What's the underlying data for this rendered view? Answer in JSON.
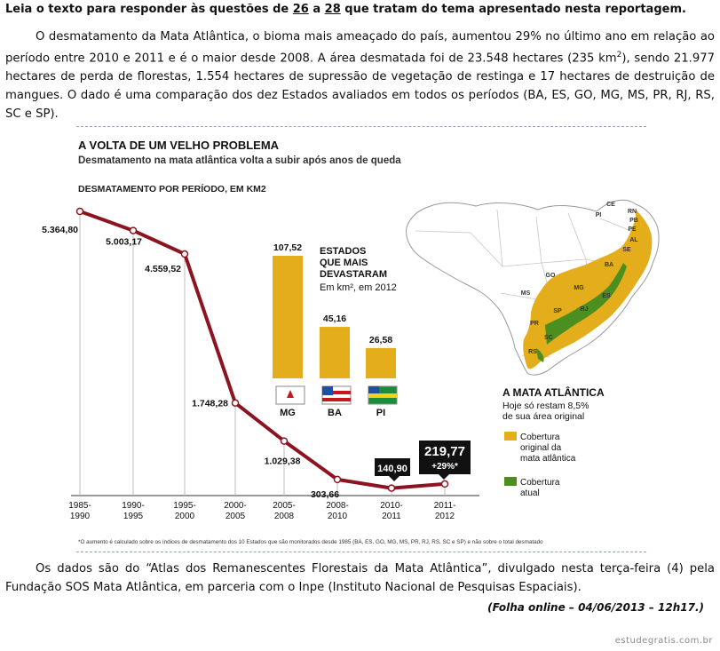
{
  "header": {
    "pre": "Leia o texto para responder às questões de ",
    "q_from": "26",
    "mid": " a ",
    "q_to": "28",
    "post": " que tratam do tema apresentado nesta reportagem."
  },
  "paragraph1": {
    "text_a": "O desmatamento da Mata Atlântica, o bioma mais ameaçado do país, aumentou 29% no último ano em relação ao período entre 2010 e 2011 e é o maior desde 2008. A área desmatada foi de 23.548 hectares (235 km",
    "sup": "2",
    "text_b": "), sendo 21.977 hectares de perda de florestas, 1.554 hectares de supressão de vegetação de restinga e 17 hectares de destruição de mangues. O dado é uma comparação dos dez Estados avaliados em todos os períodos (BA, ES, GO, MG, MS, PR, RJ, RS, SC e SP)."
  },
  "paragraph2": "Os dados são do “Atlas dos Remanescentes Florestais da Mata Atlântica”, divulgado nesta terça-feira (4) pela Fundação SOS Mata Atlântica, em parceria com o Inpe (Instituto Nacional de Pesquisas Espaciais).",
  "source": "(Folha online – 04/06/2013 – 12h17.)",
  "watermark": "estudegratis.com.br",
  "infographic": {
    "title": "A VOLTA DE UM VELHO PROBLEMA",
    "subtitle": "Desmatamento na mata atlântica volta a subir após anos de queda",
    "footnote": "*O aumento é calculado sobre os índices de desmatamento dos 10 Estados que são monitorados desde 1985 (BA, ES, GO, MG, MS, PR, RJ, RS, SC e SP) e não sobre o total desmatado",
    "colors": {
      "line": "#8b1420",
      "bar": "#e3ad1c",
      "green": "#4a8f1f",
      "ocean_label": "#555555"
    },
    "map": {
      "title": "A MATA ATLÂNTICA",
      "subtitle_1": "Hoje só restam 8,5%",
      "subtitle_2": "de sua área original",
      "legend": [
        {
          "label_1": "Cobertura",
          "label_2": "original da",
          "label_3": "mata atlântica",
          "color": "#e3ad1c"
        },
        {
          "label_1": "Cobertura",
          "label_2": "atual",
          "label_3": "",
          "color": "#4a8f1f"
        }
      ],
      "states": [
        "PI",
        "CE",
        "RN",
        "PB",
        "PE",
        "AL",
        "SE",
        "BA",
        "GO",
        "MG",
        "ES",
        "MS",
        "SP",
        "RJ",
        "PR",
        "SC",
        "RS"
      ]
    }
  },
  "chart_data": [
    {
      "type": "line",
      "title": "DESMATAMENTO POR PERÍODO, EM KM2",
      "categories": [
        "1985-1990",
        "1990-1995",
        "1995-2000",
        "2000-2005",
        "2005-2008",
        "2008-2010",
        "2010-2011",
        "2011-2012"
      ],
      "category_lines": [
        [
          "1985-",
          "1990"
        ],
        [
          "1990-",
          "1995"
        ],
        [
          "1995-",
          "2000"
        ],
        [
          "2000-",
          "2005"
        ],
        [
          "2005-",
          "2008"
        ],
        [
          "2008-",
          "2010"
        ],
        [
          "2010-",
          "2011"
        ],
        [
          "2011-",
          "2012"
        ]
      ],
      "values": [
        5364.8,
        5003.17,
        4559.52,
        1748.28,
        1029.38,
        303.66,
        140.9,
        219.77
      ],
      "labels": [
        "5.364,80",
        "5.003,17",
        "4.559,52",
        "1.748,28",
        "1.029,38",
        "303,66",
        "140,90",
        "219,77"
      ],
      "highlight_note": "+29%*"
    },
    {
      "type": "bar",
      "title_lines": [
        "ESTADOS",
        "QUE MAIS",
        "DEVASTARAM"
      ],
      "unit_text": "Em km², em 2012",
      "categories": [
        "MG",
        "BA",
        "PI"
      ],
      "values": [
        107.52,
        45.16,
        26.58
      ],
      "labels": [
        "107,52",
        "45,16",
        "26,58"
      ]
    }
  ]
}
